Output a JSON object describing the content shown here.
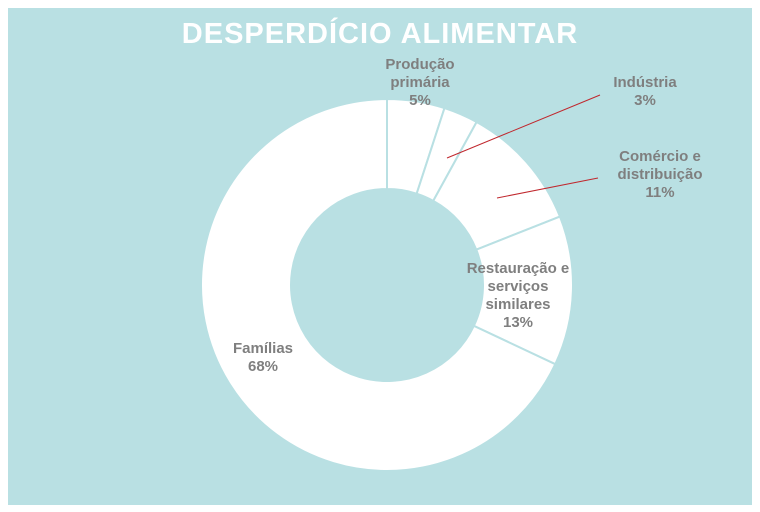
{
  "chart_data": {
    "type": "donut",
    "title": "DESPERDÍCIO ALIMENTAR",
    "categories": [
      "Produção primária",
      "Indústria",
      "Comércio e distribuição",
      "Restauração e serviços similares",
      "Famílias"
    ],
    "values": [
      5,
      3,
      11,
      13,
      68
    ],
    "value_labels": [
      "5%",
      "3%",
      "11%",
      "13%",
      "68%"
    ],
    "color": "#ffffff"
  }
}
